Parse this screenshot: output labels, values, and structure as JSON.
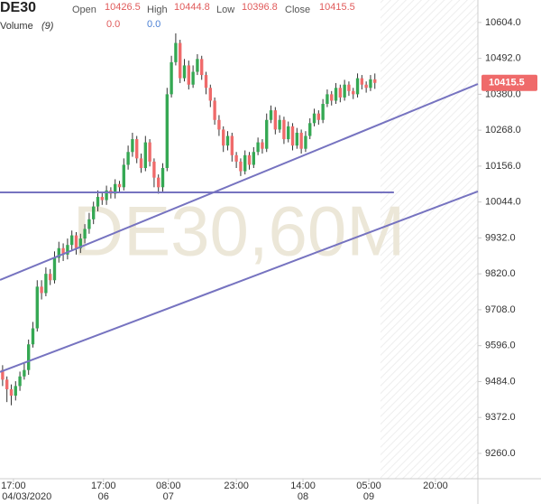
{
  "chart_data": {
    "type": "candlestick",
    "symbol": "DE30",
    "watermark": "DE30,60M",
    "header": {
      "open_label": "Open",
      "open": "10426.5",
      "high_label": "High",
      "high": "10444.8",
      "low_label": "Low",
      "low": "10396.8",
      "close_label": "Close",
      "close": "10415.5",
      "volume_label": "Volume",
      "volume_period": "(9)",
      "volume_values": [
        "0.0",
        "0.0"
      ]
    },
    "up_color": "#35a853",
    "down_color": "#ef6a6a",
    "line_color": "#7673c0",
    "candles": {
      "open": [
        9520,
        9490,
        9460,
        9440,
        9470,
        9500,
        9520,
        9600,
        9650,
        9780,
        9760,
        9820,
        9800,
        9870,
        9900,
        9880,
        9910,
        9940,
        9900,
        9930,
        9960,
        9990,
        10030,
        10060,
        10050,
        10080,
        10070,
        10100,
        10090,
        10160,
        10200,
        10240,
        10180,
        10150,
        10230,
        10170,
        10120,
        10090,
        10150,
        10380,
        10480,
        10540,
        10430,
        10470,
        10410,
        10450,
        10490,
        10440,
        10400,
        10360,
        10300,
        10270,
        10220,
        10250,
        10190,
        10170,
        10140,
        10190,
        10160,
        10200,
        10230,
        10210,
        10300,
        10330,
        10270,
        10300,
        10240,
        10280,
        10220,
        10260,
        10210,
        10250,
        10290,
        10320,
        10300,
        10350,
        10380,
        10360,
        10400,
        10370,
        10410,
        10390,
        10380,
        10430,
        10410,
        10400,
        10426.5
      ],
      "high": [
        9535,
        9500,
        9475,
        9485,
        9515,
        9540,
        9615,
        9670,
        9800,
        9800,
        9840,
        9835,
        9890,
        9920,
        9915,
        9930,
        9955,
        9950,
        9945,
        9975,
        10010,
        10045,
        10080,
        10075,
        10095,
        10090,
        10115,
        10110,
        10180,
        10220,
        10260,
        10250,
        10195,
        10250,
        10240,
        10180,
        10130,
        10165,
        10400,
        10500,
        10570,
        10550,
        10490,
        10485,
        10470,
        10505,
        10500,
        10450,
        10410,
        10370,
        10315,
        10280,
        10265,
        10260,
        10200,
        10180,
        10205,
        10200,
        10215,
        10245,
        10240,
        10320,
        10345,
        10340,
        10315,
        10310,
        10295,
        10290,
        10275,
        10270,
        10265,
        10305,
        10335,
        10330,
        10365,
        10395,
        10390,
        10415,
        10410,
        10425,
        10420,
        10400,
        10445,
        10440,
        10420,
        10440,
        10444.8
      ],
      "low": [
        9470,
        9420,
        9410,
        9425,
        9455,
        9490,
        9505,
        9590,
        9640,
        9740,
        9750,
        9785,
        9790,
        9855,
        9860,
        9865,
        9895,
        9880,
        9885,
        9915,
        9945,
        9975,
        10015,
        10035,
        10035,
        10055,
        10055,
        10075,
        10080,
        10145,
        10185,
        10165,
        10135,
        10140,
        10155,
        10090,
        10070,
        10075,
        10140,
        10370,
        10470,
        10415,
        10420,
        10395,
        10400,
        10440,
        10425,
        10380,
        10340,
        10285,
        10250,
        10200,
        10205,
        10170,
        10150,
        10125,
        10130,
        10145,
        10150,
        10190,
        10195,
        10200,
        10290,
        10255,
        10260,
        10225,
        10230,
        10205,
        10210,
        10195,
        10200,
        10240,
        10280,
        10285,
        10290,
        10340,
        10345,
        10350,
        10355,
        10360,
        10375,
        10365,
        10370,
        10395,
        10385,
        10390,
        10396.8
      ],
      "close": [
        9490,
        9460,
        9440,
        9470,
        9500,
        9520,
        9600,
        9650,
        9780,
        9760,
        9820,
        9800,
        9870,
        9900,
        9880,
        9910,
        9940,
        9900,
        9930,
        9960,
        9990,
        10030,
        10060,
        10050,
        10080,
        10070,
        10100,
        10090,
        10160,
        10200,
        10240,
        10180,
        10150,
        10230,
        10170,
        10120,
        10090,
        10150,
        10380,
        10480,
        10540,
        10430,
        10470,
        10410,
        10450,
        10490,
        10440,
        10400,
        10360,
        10300,
        10270,
        10220,
        10250,
        10190,
        10170,
        10140,
        10190,
        10160,
        10200,
        10230,
        10210,
        10300,
        10330,
        10270,
        10300,
        10240,
        10280,
        10220,
        10260,
        10210,
        10250,
        10290,
        10320,
        10300,
        10350,
        10380,
        10360,
        10400,
        10370,
        10410,
        10390,
        10380,
        10430,
        10410,
        10400,
        10426.5,
        10415.5
      ]
    },
    "xlim": [
      -0.6,
      109.8
    ],
    "ylim": [
      9181,
      10674
    ],
    "yticks": [
      {
        "value": 10604,
        "label": "10604.0"
      },
      {
        "value": 10492,
        "label": "10492.0"
      },
      {
        "value": 10380,
        "label": "10380.0"
      },
      {
        "value": 10268,
        "label": "10268.0"
      },
      {
        "value": 10156,
        "label": "10156.0"
      },
      {
        "value": 10044,
        "label": "10044.0"
      },
      {
        "value": 9932,
        "label": "9932.0"
      },
      {
        "value": 9820,
        "label": "9820.0"
      },
      {
        "value": 9708,
        "label": "9708.0"
      },
      {
        "value": 9596,
        "label": "9596.0"
      },
      {
        "value": 9484,
        "label": "9484.0"
      },
      {
        "value": 9372,
        "label": "9372.0"
      },
      {
        "value": 9260,
        "label": "9260.0"
      }
    ],
    "xticks": [
      {
        "value": 2.5,
        "label": "17:00"
      },
      {
        "value": 23.3,
        "label": "17:00"
      },
      {
        "value": 38.3,
        "label": "08:00"
      },
      {
        "value": 54,
        "label": "23:00"
      },
      {
        "value": 69.4,
        "label": "14:00"
      },
      {
        "value": 84.6,
        "label": "05:00"
      },
      {
        "value": 100,
        "label": "20:00"
      }
    ],
    "xtick_dates": [
      {
        "value": 5.6,
        "label": "04/03/2020"
      },
      {
        "value": 23.3,
        "label": "06"
      },
      {
        "value": 38.3,
        "label": "07"
      },
      {
        "value": 69.4,
        "label": "08"
      },
      {
        "value": 84.6,
        "label": "09"
      }
    ],
    "last_price": {
      "value": 10415.5,
      "label": "10415.5"
    },
    "trendlines": [
      {
        "x": [
          -0.6,
          109.8
        ],
        "y": [
          9801,
          10412
        ]
      },
      {
        "x": [
          -0.6,
          109.8
        ],
        "y": [
          9514,
          10077
        ]
      },
      {
        "x": [
          -0.6,
          90.4
        ],
        "y": [
          10074,
          10074
        ]
      }
    ],
    "grid": false
  }
}
